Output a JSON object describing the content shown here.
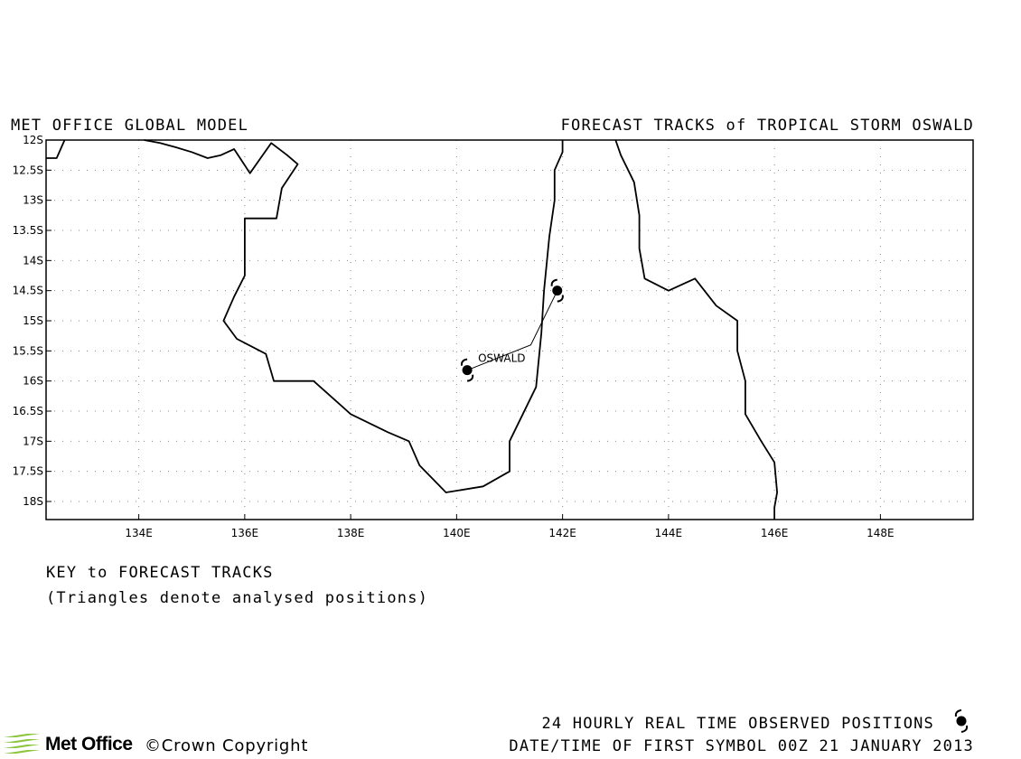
{
  "header": {
    "model_title": "MET OFFICE GLOBAL MODEL",
    "forecast_title": "FORECAST TRACKS of TROPICAL STORM OSWALD"
  },
  "map": {
    "lon_range": [
      132.25,
      149.75
    ],
    "lat_range": [
      -18.3,
      -12.0
    ],
    "grid": true,
    "lat_ticks": [
      {
        "value": -12.0,
        "label": "12S"
      },
      {
        "value": -12.5,
        "label": "12.5S"
      },
      {
        "value": -13.0,
        "label": "13S"
      },
      {
        "value": -13.5,
        "label": "13.5S"
      },
      {
        "value": -14.0,
        "label": "14S"
      },
      {
        "value": -14.5,
        "label": "14.5S"
      },
      {
        "value": -15.0,
        "label": "15S"
      },
      {
        "value": -15.5,
        "label": "15.5S"
      },
      {
        "value": -16.0,
        "label": "16S"
      },
      {
        "value": -16.5,
        "label": "16.5S"
      },
      {
        "value": -17.0,
        "label": "17S"
      },
      {
        "value": -17.5,
        "label": "17.5S"
      },
      {
        "value": -18.0,
        "label": "18S"
      }
    ],
    "lon_ticks": [
      {
        "value": 134,
        "label": "134E"
      },
      {
        "value": 136,
        "label": "136E"
      },
      {
        "value": 138,
        "label": "138E"
      },
      {
        "value": 140,
        "label": "140E"
      },
      {
        "value": 142,
        "label": "142E"
      },
      {
        "value": 144,
        "label": "144E"
      },
      {
        "value": 146,
        "label": "146E"
      },
      {
        "value": 148,
        "label": "148E"
      }
    ],
    "coastlines": [
      [
        [
          132.25,
          -12.3
        ],
        [
          132.45,
          -12.3
        ],
        [
          132.6,
          -12.0
        ]
      ],
      [
        [
          134.1,
          -12.0
        ],
        [
          134.4,
          -12.05
        ],
        [
          134.7,
          -12.12
        ],
        [
          135.0,
          -12.2
        ],
        [
          135.3,
          -12.3
        ],
        [
          135.55,
          -12.25
        ],
        [
          135.8,
          -12.15
        ],
        [
          136.1,
          -12.55
        ],
        [
          136.3,
          -12.3
        ],
        [
          136.5,
          -12.05
        ],
        [
          136.8,
          -12.25
        ],
        [
          137.0,
          -12.4
        ],
        [
          136.7,
          -12.8
        ],
        [
          136.6,
          -13.3
        ],
        [
          136.0,
          -13.3
        ],
        [
          136.0,
          -14.25
        ],
        [
          135.8,
          -14.6
        ],
        [
          135.6,
          -15.0
        ],
        [
          135.85,
          -15.3
        ],
        [
          136.4,
          -15.55
        ],
        [
          136.55,
          -16.0
        ],
        [
          137.3,
          -16.0
        ],
        [
          138.0,
          -16.55
        ],
        [
          138.7,
          -16.85
        ],
        [
          139.1,
          -17.0
        ],
        [
          139.3,
          -17.4
        ],
        [
          139.8,
          -17.85
        ],
        [
          140.5,
          -17.75
        ],
        [
          141.0,
          -17.5
        ],
        [
          141.0,
          -17.0
        ],
        [
          141.5,
          -16.1
        ],
        [
          141.6,
          -15.2
        ],
        [
          141.65,
          -14.5
        ],
        [
          141.75,
          -13.6
        ],
        [
          141.85,
          -13.0
        ],
        [
          141.85,
          -12.5
        ],
        [
          142.0,
          -12.2
        ],
        [
          142.0,
          -12.0
        ]
      ],
      [
        [
          143.0,
          -12.0
        ],
        [
          143.1,
          -12.25
        ],
        [
          143.35,
          -12.7
        ],
        [
          143.45,
          -13.25
        ],
        [
          143.45,
          -13.8
        ],
        [
          143.55,
          -14.3
        ],
        [
          144.0,
          -14.5
        ],
        [
          144.5,
          -14.3
        ],
        [
          144.9,
          -14.75
        ],
        [
          145.3,
          -15.0
        ],
        [
          145.3,
          -15.5
        ],
        [
          145.45,
          -16.0
        ],
        [
          145.45,
          -16.55
        ],
        [
          145.75,
          -17.0
        ],
        [
          146.0,
          -17.35
        ],
        [
          146.05,
          -17.85
        ],
        [
          146.0,
          -18.1
        ],
        [
          146.0,
          -18.3
        ]
      ]
    ],
    "track": {
      "name": "OSWALD",
      "points": [
        [
          140.2,
          -15.82
        ],
        [
          141.4,
          -15.4
        ],
        [
          141.9,
          -14.5
        ]
      ],
      "observed_positions": [
        [
          140.2,
          -15.82
        ],
        [
          141.9,
          -14.5
        ]
      ]
    }
  },
  "key": {
    "title": "KEY to FORECAST TRACKS",
    "note": "(Triangles denote analysed positions)"
  },
  "footer": {
    "observed_label": "24 HOURLY REAL TIME OBSERVED POSITIONS",
    "date_label": "DATE/TIME OF FIRST SYMBOL 00Z 21 JANUARY 2013",
    "logo_text": "Met Office",
    "copyright": "©Crown Copyright"
  }
}
